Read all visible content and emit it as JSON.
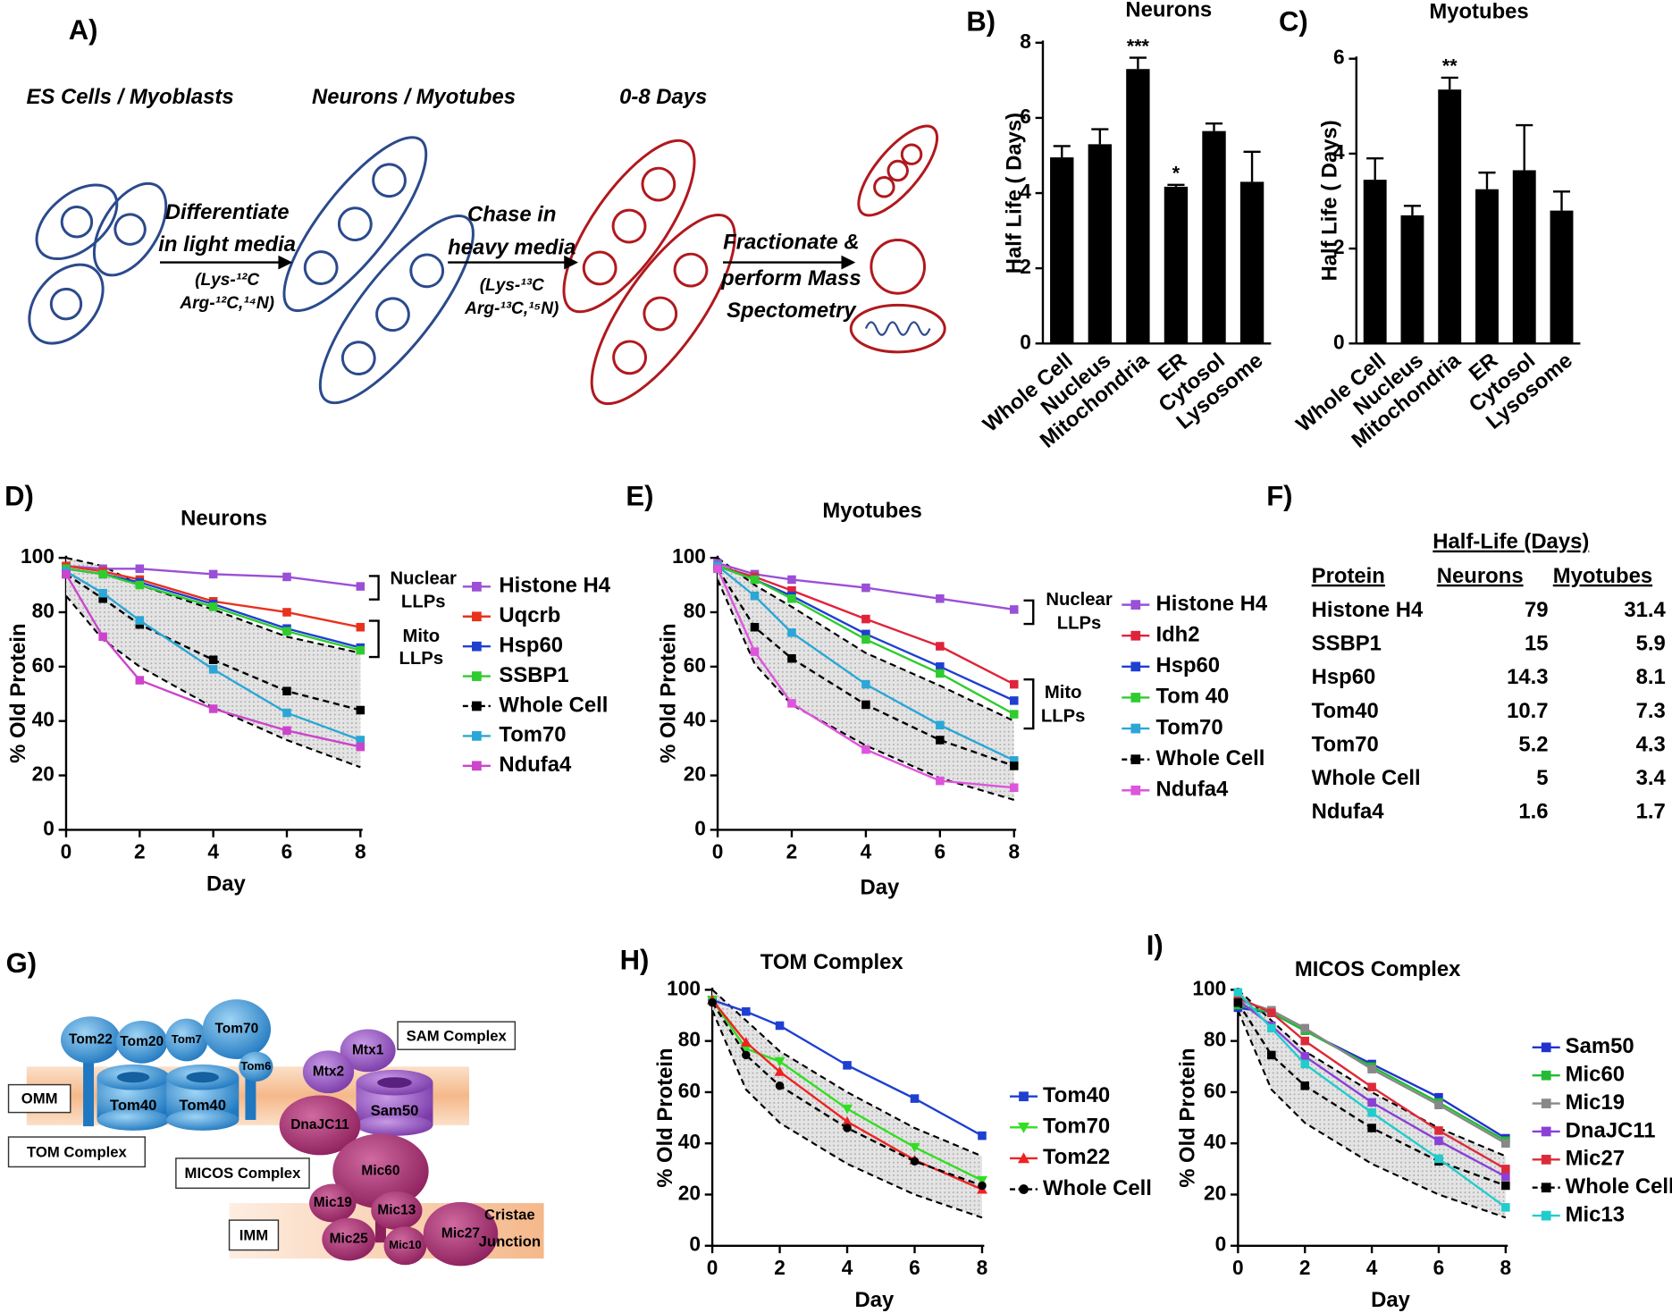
{
  "panel_a": {
    "label": "A)",
    "stages": [
      "ES Cells / Myoblasts",
      "Neurons / Myotubes",
      "0-8 Days"
    ],
    "steps": [
      {
        "lines": [
          "Differentiate",
          "in light media"
        ],
        "media": [
          "(Lys-¹²C",
          "Arg-¹²C,¹⁴N)"
        ]
      },
      {
        "lines": [
          "Chase in",
          "heavy media"
        ],
        "media": [
          "(Lys-¹³C",
          "Arg-¹³C,¹⁵N)"
        ]
      },
      {
        "lines": [
          "Fractionate &",
          "perform Mass",
          "Spectometry"
        ]
      }
    ]
  },
  "chart_data": [
    {
      "type": "bar",
      "label": "B)",
      "title": "Neurons",
      "y_label": "Half Life ( Days)",
      "categories": [
        "Whole Cell",
        "Nucleus",
        "Mitochondria",
        "ER",
        "Cytosol",
        "Lysosome"
      ],
      "values": [
        4.95,
        5.3,
        7.3,
        4.17,
        5.65,
        4.3
      ],
      "errors": [
        0.3,
        0.4,
        0.3,
        0.05,
        0.2,
        0.8
      ],
      "significance": [
        null,
        null,
        "***",
        "*",
        null,
        null
      ],
      "color": "#000000",
      "ylim": [
        0,
        8
      ],
      "yticks": [
        0,
        2,
        4,
        6,
        8
      ]
    },
    {
      "type": "bar",
      "label": "C)",
      "title": "Myotubes",
      "y_label": "Half Life ( Days)",
      "categories": [
        "Whole Cell",
        "Nucleus",
        "Mitochondria",
        "ER",
        "Cytosol",
        "Lysosome"
      ],
      "values": [
        3.45,
        2.7,
        5.35,
        3.25,
        3.65,
        2.8
      ],
      "errors": [
        0.45,
        0.2,
        0.25,
        0.35,
        0.95,
        0.4
      ],
      "significance": [
        null,
        null,
        "**",
        null,
        null,
        null
      ],
      "color": "#000000",
      "ylim": [
        0,
        6
      ],
      "yticks": [
        0,
        2,
        4,
        6
      ]
    },
    {
      "type": "line",
      "label": "D)",
      "title": "Neurons",
      "x_label": "Day",
      "y_label": "% Old Protein",
      "x": [
        0,
        1,
        2,
        4,
        6,
        8
      ],
      "xlim": [
        0,
        8
      ],
      "xticks": [
        0,
        2,
        4,
        6,
        8
      ],
      "ylim": [
        0,
        100
      ],
      "yticks": [
        0,
        20,
        40,
        60,
        80,
        100
      ],
      "band": {
        "upper": [
          100,
          97,
          90,
          81,
          71,
          65
        ],
        "lower": [
          86,
          70,
          60,
          45,
          33,
          23
        ]
      },
      "annotations": [
        {
          "lines": [
            "Nuclear",
            "LLPs"
          ]
        },
        {
          "lines": [
            "Mito",
            "LLPs"
          ]
        }
      ],
      "series": [
        {
          "name": "Histone H4",
          "color": "#9b4fd6",
          "marker": "square",
          "values": [
            97,
            96,
            96,
            94,
            93,
            89.5
          ]
        },
        {
          "name": "Uqcrb",
          "color": "#e8321e",
          "marker": "square",
          "values": [
            97,
            95,
            92,
            84,
            80,
            74.5
          ]
        },
        {
          "name": "Hsp60",
          "color": "#1f3fd1",
          "marker": "square",
          "values": [
            96,
            94,
            91,
            83,
            74,
            67
          ]
        },
        {
          "name": "SSBP1",
          "color": "#2ecc2e",
          "marker": "square",
          "values": [
            96,
            94,
            90,
            82,
            73,
            66
          ]
        },
        {
          "name": "Whole Cell",
          "color": "#000000",
          "marker": "square",
          "dashed": true,
          "values": [
            94,
            85,
            75.5,
            62.5,
            51,
            44
          ]
        },
        {
          "name": "Tom70",
          "color": "#2aa7d6",
          "marker": "square",
          "values": [
            95,
            87,
            77,
            59,
            43,
            33
          ]
        },
        {
          "name": "Ndufa4",
          "color": "#cc44cc",
          "marker": "square",
          "values": [
            94,
            71,
            55,
            44.5,
            36.5,
            30.5
          ]
        }
      ]
    },
    {
      "type": "line",
      "label": "E)",
      "title": "Myotubes",
      "x_label": "Day",
      "y_label": "% Old Protein",
      "x": [
        0,
        1,
        2,
        4,
        6,
        8
      ],
      "xlim": [
        0,
        8
      ],
      "xticks": [
        0,
        2,
        4,
        6,
        8
      ],
      "ylim": [
        0,
        100
      ],
      "yticks": [
        0,
        20,
        40,
        60,
        80,
        100
      ],
      "band": {
        "upper": [
          100,
          90,
          82,
          65,
          53,
          40
        ],
        "lower": [
          92,
          61,
          46,
          31,
          19,
          11
        ]
      },
      "annotations": [
        {
          "lines": [
            "Nuclear",
            "LLPs"
          ]
        },
        {
          "lines": [
            "Mito",
            "LLPs"
          ]
        }
      ],
      "series": [
        {
          "name": "Histone H4",
          "color": "#9b4fd6",
          "marker": "square",
          "values": [
            98,
            94,
            92,
            89,
            85,
            81
          ]
        },
        {
          "name": "Idh2",
          "color": "#e0233a",
          "marker": "square",
          "values": [
            97,
            93,
            88,
            77.5,
            67.5,
            53.5
          ]
        },
        {
          "name": "Hsp60",
          "color": "#1f3fd1",
          "marker": "square",
          "values": [
            97,
            92,
            86,
            72,
            60,
            47.5
          ]
        },
        {
          "name": "Tom 40",
          "color": "#2ecc2e",
          "marker": "square",
          "values": [
            97,
            92,
            85,
            70,
            57.5,
            42.5
          ]
        },
        {
          "name": "Tom70",
          "color": "#2aa7d6",
          "marker": "square",
          "values": [
            97,
            86,
            72.5,
            53.5,
            38.5,
            25.5
          ]
        },
        {
          "name": "Whole Cell",
          "color": "#000000",
          "marker": "square",
          "dashed": true,
          "values": [
            96,
            74.5,
            63,
            46,
            33,
            23.5
          ]
        },
        {
          "name": "Ndufa4",
          "color": "#dd55dd",
          "marker": "square",
          "values": [
            96,
            65.5,
            46.5,
            29.5,
            18,
            15.5
          ]
        }
      ]
    },
    {
      "type": "line",
      "label": "H)",
      "title": "TOM Complex",
      "x_label": "Day",
      "y_label": "% Old Protein",
      "x": [
        0,
        1,
        2,
        4,
        6,
        8
      ],
      "xlim": [
        0,
        8
      ],
      "xticks": [
        0,
        2,
        4,
        6,
        8
      ],
      "ylim": [
        0,
        100
      ],
      "yticks": [
        0,
        20,
        40,
        60,
        80,
        100
      ],
      "band": {
        "upper": [
          100,
          88,
          76,
          60,
          46,
          35
        ],
        "lower": [
          92,
          61,
          48,
          32,
          20,
          11
        ]
      },
      "series": [
        {
          "name": "Tom40",
          "color": "#1f3fd1",
          "marker": "square",
          "values": [
            96,
            91.5,
            86,
            70.5,
            57.5,
            43
          ]
        },
        {
          "name": "Tom70",
          "color": "#33dd22",
          "marker": "triangle-down",
          "values": [
            96,
            77,
            72,
            53.5,
            38.5,
            25.5
          ]
        },
        {
          "name": "Tom22",
          "color": "#ee2222",
          "marker": "triangle",
          "values": [
            96,
            79.5,
            68,
            48.5,
            33.5,
            22
          ]
        },
        {
          "name": "Whole Cell",
          "color": "#000000",
          "marker": "circle",
          "dashed": true,
          "values": [
            95,
            74.5,
            62.5,
            46,
            33,
            23.5
          ]
        }
      ]
    },
    {
      "type": "line",
      "label": "I)",
      "title": "MICOS Complex",
      "x_label": "Day",
      "y_label": "% Old Protein",
      "x": [
        0,
        1,
        2,
        4,
        6,
        8
      ],
      "xlim": [
        0,
        8
      ],
      "xticks": [
        0,
        2,
        4,
        6,
        8
      ],
      "ylim": [
        0,
        100
      ],
      "yticks": [
        0,
        20,
        40,
        60,
        80,
        100
      ],
      "band": {
        "upper": [
          100,
          88,
          76,
          60,
          46,
          35
        ],
        "lower": [
          92,
          61,
          48,
          32,
          20,
          11
        ]
      },
      "series": [
        {
          "name": "Sam50",
          "color": "#2233cc",
          "marker": "square",
          "values": [
            93,
            91,
            84,
            71,
            58,
            42
          ]
        },
        {
          "name": "Mic60",
          "color": "#22bb33",
          "marker": "square",
          "values": [
            94,
            91,
            84,
            70,
            56,
            41
          ]
        },
        {
          "name": "Mic19",
          "color": "#888888",
          "marker": "square",
          "values": [
            96,
            92,
            85,
            69,
            55,
            40
          ]
        },
        {
          "name": "DnaJC11",
          "color": "#8a3fd6",
          "marker": "square",
          "values": [
            96,
            86,
            74,
            56,
            41,
            27
          ]
        },
        {
          "name": "Mic27",
          "color": "#dd2a3a",
          "marker": "square",
          "values": [
            97,
            91,
            80,
            62,
            45,
            30
          ]
        },
        {
          "name": "Whole Cell",
          "color": "#000000",
          "marker": "square",
          "dashed": true,
          "values": [
            95,
            74.5,
            62.5,
            46,
            33,
            23.5
          ]
        },
        {
          "name": "Mic13",
          "color": "#22cccc",
          "marker": "square",
          "values": [
            99,
            85,
            71,
            52,
            34,
            15
          ]
        }
      ]
    }
  ],
  "table": {
    "label": "F)",
    "group_header": "Half-Life (Days)",
    "columns": [
      "Protein",
      "Neurons",
      "Myotubes"
    ],
    "rows": [
      [
        "Histone H4",
        79,
        31.4
      ],
      [
        "SSBP1",
        15,
        5.9
      ],
      [
        "Hsp60",
        14.3,
        8.1
      ],
      [
        "Tom40",
        10.7,
        7.3
      ],
      [
        "Tom70",
        5.2,
        4.3
      ],
      [
        "Whole Cell",
        5,
        3.4
      ],
      [
        "Ndufa4",
        1.6,
        1.7
      ]
    ]
  },
  "panel_g": {
    "label": "G)",
    "proteins": [
      "Tom22",
      "Tom20",
      "Tom7",
      "Tom70",
      "Tom6",
      "Tom40",
      "Tom40",
      "Mtx1",
      "Mtx2",
      "Sam50",
      "DnaJC11",
      "Mic60",
      "Mic19",
      "Mic13",
      "Mic25",
      "Mic10",
      "Mic27"
    ],
    "boxes": [
      "SAM Complex",
      "OMM",
      "TOM Complex",
      "MICOS Complex",
      "IMM"
    ],
    "region": [
      "Cristae",
      "Junction"
    ]
  }
}
